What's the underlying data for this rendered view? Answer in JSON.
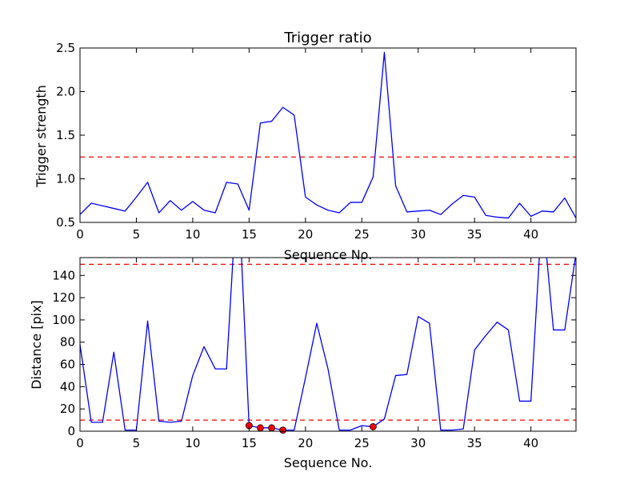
{
  "chart_data": [
    {
      "type": "line",
      "title": "Trigger ratio",
      "xlabel": "Sequence No.",
      "ylabel": "Trigger strength",
      "xlim": [
        0,
        44
      ],
      "ylim": [
        0.5,
        2.5
      ],
      "xticks": [
        0,
        5,
        10,
        15,
        20,
        25,
        30,
        35,
        40
      ],
      "xtick_labels": [
        "0",
        "5",
        "10",
        "15",
        "20",
        "25",
        "30",
        "35",
        "40"
      ],
      "yticks": [
        0.5,
        1.0,
        1.5,
        2.0,
        2.5
      ],
      "ytick_labels": [
        "0.5",
        "1.0",
        "1.5",
        "2.0",
        "2.5"
      ],
      "grid": false,
      "series": [
        {
          "color": "#0000ff",
          "x": [
            0,
            1,
            2,
            3,
            4,
            5,
            6,
            7,
            8,
            9,
            10,
            11,
            12,
            13,
            14,
            15,
            16,
            17,
            18,
            19,
            20,
            21,
            22,
            23,
            24,
            25,
            26,
            27,
            28,
            29,
            30,
            31,
            32,
            33,
            34,
            35,
            36,
            37,
            38,
            39,
            40,
            41,
            42,
            43,
            44
          ],
          "y": [
            0.59,
            0.72,
            0.69,
            0.66,
            0.63,
            0.79,
            0.96,
            0.61,
            0.75,
            0.64,
            0.74,
            0.64,
            0.61,
            0.96,
            0.94,
            0.64,
            1.64,
            1.66,
            1.82,
            1.73,
            0.79,
            0.7,
            0.64,
            0.61,
            0.73,
            0.73,
            1.02,
            2.45,
            0.92,
            0.62,
            0.63,
            0.64,
            0.59,
            0.71,
            0.81,
            0.79,
            0.58,
            0.56,
            0.55,
            0.72,
            0.57,
            0.63,
            0.62,
            0.78,
            0.55
          ]
        }
      ],
      "hlines": [
        {
          "y": 1.25,
          "color": "#ff0000",
          "style": "dashed"
        }
      ]
    },
    {
      "type": "line",
      "xlabel": "Sequence No.",
      "ylabel": "Distance [pix]",
      "xlim": [
        0,
        44
      ],
      "ylim": [
        0,
        156
      ],
      "xticks": [
        0,
        5,
        10,
        15,
        20,
        25,
        30,
        35,
        40
      ],
      "xtick_labels": [
        "0",
        "5",
        "10",
        "15",
        "20",
        "25",
        "30",
        "35",
        "40"
      ],
      "yticks": [
        0,
        20,
        40,
        60,
        80,
        100,
        120,
        140
      ],
      "ytick_labels": [
        "0",
        "20",
        "40",
        "60",
        "80",
        "100",
        "120",
        "140"
      ],
      "grid": false,
      "series": [
        {
          "color": "#0000ff",
          "x": [
            0,
            1,
            2,
            3,
            4,
            5,
            6,
            7,
            8,
            9,
            10,
            11,
            12,
            13,
            14,
            15,
            16,
            17,
            18,
            19,
            20,
            21,
            22,
            23,
            24,
            25,
            26,
            27,
            28,
            29,
            30,
            31,
            32,
            33,
            34,
            35,
            36,
            37,
            38,
            39,
            40,
            41,
            42,
            43,
            44
          ],
          "y": [
            78,
            8,
            8,
            71,
            1,
            1,
            99,
            9,
            8,
            9,
            50,
            76,
            56,
            56,
            230,
            5,
            3,
            3,
            1,
            1,
            48,
            97,
            56,
            1,
            1,
            5,
            4,
            11,
            50,
            51,
            103,
            97,
            1,
            1,
            2,
            73,
            86,
            98,
            91,
            27,
            27,
            200,
            91,
            91,
            160
          ]
        }
      ],
      "markers": {
        "color": "#ff0000",
        "x": [
          15,
          16,
          17,
          18,
          26
        ],
        "y": [
          5,
          3,
          3,
          1,
          4
        ]
      },
      "hlines": [
        {
          "y": 150,
          "color": "#ff0000",
          "style": "dashed"
        },
        {
          "y": 10,
          "color": "#ff0000",
          "style": "dashed"
        }
      ]
    }
  ]
}
